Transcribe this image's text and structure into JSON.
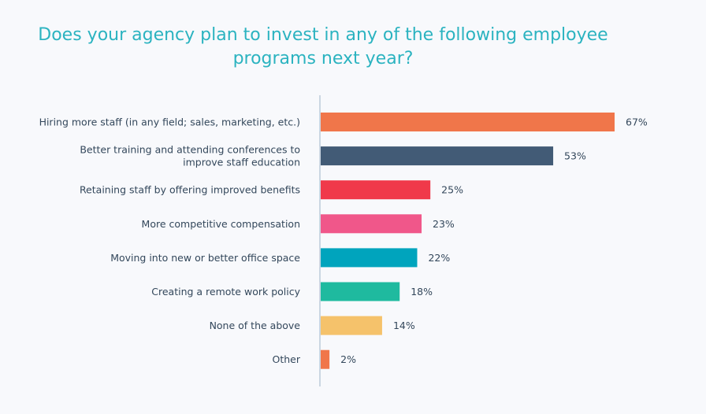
{
  "title": {
    "line1": "Does your agency plan to invest in any of the following employee",
    "line2": "programs next year?"
  },
  "chart_data": {
    "type": "bar",
    "orientation": "horizontal",
    "title": "Does your agency plan to invest in any of the following employee programs next year?",
    "categories": [
      [
        "Hiring more staff (in any field; sales, marketing, etc.)"
      ],
      [
        "Better training and attending conferences to",
        "improve staff education"
      ],
      [
        "Retaining staff by offering improved benefits"
      ],
      [
        "More competitive compensation"
      ],
      [
        "Moving into new or better office space"
      ],
      [
        "Creating a remote work policy"
      ],
      [
        "None of the above"
      ],
      [
        "Other"
      ]
    ],
    "values": [
      67,
      53,
      25,
      23,
      22,
      18,
      14,
      2
    ],
    "value_labels": [
      "67%",
      "53%",
      "25%",
      "23%",
      "22%",
      "18%",
      "14%",
      "2%"
    ],
    "colors": [
      "#f0764a",
      "#425b76",
      "#f0394a",
      "#f0578a",
      "#00a4bd",
      "#1fba9f",
      "#f5c26b",
      "#f0764a"
    ],
    "xlim": [
      0,
      67
    ],
    "axis_color": "#cbd6e2",
    "grid": false,
    "legend": "none"
  }
}
